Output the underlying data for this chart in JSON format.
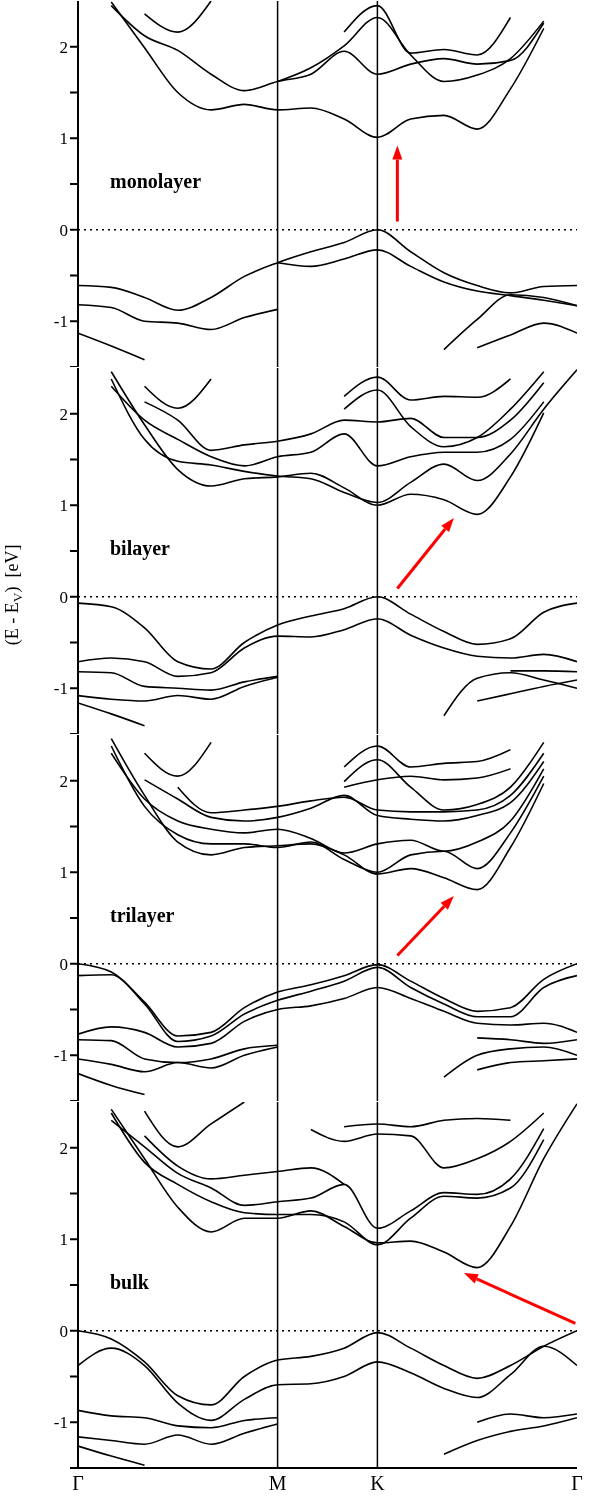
{
  "chart_data": [
    {
      "type": "line",
      "annotations": [
        "monolayer"
      ],
      "categories": [
        "Γ",
        null,
        null,
        null,
        null,
        null,
        "M",
        null,
        null,
        "K",
        null,
        null,
        null,
        null,
        null,
        "Γ"
      ],
      "ylim": [
        -1.5,
        2.5
      ],
      "yticks": [
        {
          "value": -1.5,
          "label": null
        },
        -1,
        {
          "value": -0.5,
          "label": null
        },
        0,
        {
          "value": 0.5,
          "label": null
        },
        1,
        {
          "value": 1.5,
          "label": null
        },
        2
      ],
      "tick_labels": "y",
      "ref_lines": [
        {
          "axis": "x",
          "value": "M",
          "color": "#000000",
          "line_style": "solid"
        },
        {
          "axis": "x",
          "value": "K",
          "color": "#000000",
          "line_style": "solid"
        },
        {
          "axis": "y",
          "value": 0,
          "color": "#000000",
          "line_style": "dotted"
        }
      ],
      "series": [
        {
          "color": "#000000",
          "values": [
            -0.61,
            -0.63,
            -0.74,
            -0.88,
            -0.74,
            -0.51,
            -0.36,
            -0.24,
            -0.14,
            0,
            -0.24,
            -0.47,
            -0.61,
            -0.69,
            -0.62,
            -0.61
          ]
        },
        {
          "color": "#000000",
          "values": [
            null,
            null,
            null,
            null,
            null,
            null,
            -0.36,
            -0.4,
            -0.32,
            -0.22,
            -0.4,
            -0.57,
            -0.67,
            -0.72,
            -0.77,
            -0.83
          ]
        },
        {
          "color": "#000000",
          "values": [
            -0.82,
            -0.85,
            -1.0,
            -1.02,
            -1.09,
            -0.96,
            -0.87,
            null,
            null,
            null,
            null,
            null,
            null,
            null,
            null,
            null
          ]
        },
        {
          "color": "#000000",
          "values": [
            -1.13,
            -1.27,
            -1.42,
            null,
            null,
            null,
            null,
            null,
            null,
            null,
            null,
            null,
            null,
            null,
            null,
            null
          ]
        },
        {
          "color": "#000000",
          "values": [
            null,
            null,
            null,
            null,
            null,
            null,
            null,
            null,
            null,
            null,
            null,
            -1.31,
            -0.98,
            -0.71,
            -0.74,
            -0.83
          ]
        },
        {
          "color": "#000000",
          "values": [
            null,
            null,
            null,
            null,
            null,
            null,
            null,
            null,
            null,
            null,
            null,
            null,
            -1.29,
            -1.15,
            -1.02,
            -1.13
          ]
        },
        {
          "color": "#000000",
          "values": [
            null,
            2.49,
            1.99,
            1.5,
            1.31,
            1.37,
            1.31,
            1.33,
            1.21,
            1.01,
            1.21,
            1.25,
            1.1,
            1.54,
            2.2,
            null
          ]
        },
        {
          "color": "#000000",
          "values": [
            null,
            2.45,
            2.12,
            1.96,
            1.7,
            1.52,
            1.62,
            1.7,
            1.95,
            1.7,
            1.81,
            1.87,
            1.81,
            1.85,
            2.26,
            null
          ]
        },
        {
          "color": "#000000",
          "values": [
            null,
            null,
            null,
            null,
            null,
            null,
            1.62,
            1.77,
            2.01,
            2.32,
            1.91,
            1.62,
            1.69,
            1.87,
            2.28,
            null
          ]
        },
        {
          "color": "#000000",
          "values": [
            null,
            null,
            2.36,
            2.16,
            2.5,
            null,
            null,
            null,
            null,
            null,
            null,
            null,
            null,
            null,
            null,
            null
          ]
        },
        {
          "color": "#000000",
          "values": [
            null,
            null,
            null,
            null,
            null,
            null,
            null,
            null,
            2.16,
            2.45,
            1.93,
            1.97,
            1.91,
            2.32,
            null,
            null
          ]
        }
      ]
    },
    {
      "type": "line",
      "annotations": [
        "bilayer"
      ],
      "ylabel": "(E - E$_{V}$)  [eV]",
      "categories": [
        "Γ",
        null,
        null,
        null,
        null,
        null,
        "M",
        null,
        null,
        "K",
        null,
        null,
        null,
        null,
        null,
        "Γ"
      ],
      "ylim": [
        -1.5,
        2.5
      ],
      "yticks": [
        {
          "value": -1.5,
          "label": null
        },
        -1,
        {
          "value": -0.5,
          "label": null
        },
        0,
        {
          "value": 0.5,
          "label": null
        },
        1,
        {
          "value": 1.5,
          "label": null
        },
        2
      ],
      "tick_labels": "y",
      "ref_lines": [
        {
          "axis": "x",
          "value": "M",
          "color": "#000000",
          "line_style": "solid"
        },
        {
          "axis": "x",
          "value": "K",
          "color": "#000000",
          "line_style": "solid"
        },
        {
          "axis": "y",
          "value": 0,
          "color": "#000000",
          "line_style": "dotted"
        }
      ],
      "series": [
        {
          "color": "#000000",
          "values": [
            -0.07,
            -0.11,
            -0.34,
            -0.71,
            -0.79,
            -0.5,
            -0.31,
            -0.21,
            -0.13,
            0,
            -0.19,
            -0.38,
            -0.52,
            -0.46,
            -0.17,
            -0.07
          ]
        },
        {
          "color": "#000000",
          "values": [
            -0.71,
            -0.67,
            -0.71,
            -0.87,
            -0.83,
            -0.56,
            -0.43,
            -0.44,
            -0.36,
            -0.24,
            -0.42,
            -0.56,
            -0.65,
            -0.67,
            -0.63,
            -0.71
          ]
        },
        {
          "color": "#000000",
          "values": [
            -0.82,
            -0.83,
            -0.98,
            -1.0,
            -1.02,
            -0.93,
            -0.87,
            null,
            null,
            null,
            null,
            null,
            null,
            -0.81,
            -0.81,
            -0.82
          ]
        },
        {
          "color": "#000000",
          "values": [
            -1.08,
            -1.12,
            -1.14,
            -1.08,
            -1.12,
            -0.98,
            -0.88,
            null,
            null,
            null,
            null,
            null,
            null,
            null,
            null,
            null
          ]
        },
        {
          "color": "#000000",
          "values": [
            null,
            null,
            null,
            null,
            null,
            null,
            null,
            null,
            null,
            null,
            null,
            -1.3,
            -0.89,
            -0.83,
            -0.91,
            -1.0
          ]
        },
        {
          "color": "#000000",
          "values": [
            null,
            null,
            null,
            null,
            null,
            null,
            null,
            null,
            null,
            null,
            null,
            null,
            -1.14,
            -1.06,
            -0.98,
            -0.91
          ]
        },
        {
          "color": "#000000",
          "values": [
            -1.16,
            -1.28,
            -1.41,
            null,
            null,
            null,
            null,
            null,
            null,
            null,
            null,
            null,
            null,
            null,
            null,
            null
          ]
        },
        {
          "color": "#000000",
          "values": [
            null,
            2.46,
            1.88,
            1.39,
            1.21,
            1.29,
            1.31,
            1.35,
            1.19,
            1.0,
            1.12,
            1.06,
            0.9,
            1.31,
            2.01,
            null
          ]
        },
        {
          "color": "#000000",
          "values": [
            null,
            2.38,
            1.72,
            1.48,
            1.44,
            1.37,
            1.32,
            1.29,
            1.14,
            1.03,
            1.25,
            1.45,
            1.27,
            1.56,
            2.05,
            2.48
          ]
        },
        {
          "color": "#000000",
          "values": [
            null,
            2.3,
            1.93,
            1.72,
            1.53,
            1.43,
            1.53,
            1.58,
            1.78,
            1.43,
            1.53,
            1.58,
            1.58,
            1.72,
            2.13,
            null
          ]
        },
        {
          "color": "#000000",
          "values": [
            null,
            null,
            2.13,
            1.93,
            1.6,
            1.66,
            1.7,
            1.78,
            1.93,
            1.91,
            1.95,
            1.74,
            1.74,
            1.93,
            2.34,
            null
          ]
        },
        {
          "color": "#000000",
          "values": [
            null,
            null,
            null,
            null,
            null,
            null,
            null,
            null,
            2.19,
            2.4,
            2.15,
            2.19,
            2.18,
            2.38,
            null,
            null
          ]
        },
        {
          "color": "#000000",
          "values": [
            null,
            null,
            null,
            null,
            null,
            null,
            null,
            null,
            2.05,
            2.26,
            1.86,
            1.64,
            1.74,
            2.05,
            2.46,
            null
          ]
        },
        {
          "color": "#000000",
          "values": [
            null,
            null,
            2.3,
            2.06,
            2.38,
            null,
            null,
            null,
            null,
            null,
            null,
            null,
            null,
            null,
            null,
            null
          ]
        }
      ]
    },
    {
      "type": "line",
      "annotations": [
        "trilayer"
      ],
      "categories": [
        "Γ",
        null,
        null,
        null,
        null,
        null,
        "M",
        null,
        null,
        "K",
        null,
        null,
        null,
        null,
        null,
        "Γ"
      ],
      "ylim": [
        -1.5,
        2.5
      ],
      "yticks": [
        {
          "value": -1.5,
          "label": null
        },
        -1,
        {
          "value": -0.5,
          "label": null
        },
        0,
        {
          "value": 0.5,
          "label": null
        },
        1,
        {
          "value": 1.5,
          "label": null
        },
        2
      ],
      "tick_labels": "y",
      "ref_lines": [
        {
          "axis": "x",
          "value": "M",
          "color": "#000000",
          "line_style": "solid"
        },
        {
          "axis": "x",
          "value": "K",
          "color": "#000000",
          "line_style": "solid"
        },
        {
          "axis": "y",
          "value": 0,
          "color": "#000000",
          "line_style": "dotted"
        }
      ],
      "series": [
        {
          "color": "#000000",
          "values": [
            0,
            -0.09,
            -0.42,
            -0.79,
            -0.75,
            -0.48,
            -0.31,
            -0.23,
            -0.13,
            -0.01,
            -0.19,
            -0.38,
            -0.52,
            -0.48,
            -0.17,
            0
          ]
        },
        {
          "color": "#000000",
          "values": [
            -0.13,
            -0.12,
            -0.44,
            -0.85,
            -0.79,
            -0.55,
            -0.4,
            -0.3,
            -0.19,
            -0.04,
            -0.26,
            -0.44,
            -0.58,
            -0.58,
            -0.26,
            -0.13
          ]
        },
        {
          "color": "#000000",
          "values": [
            -0.77,
            -0.69,
            -0.75,
            -0.91,
            -0.87,
            -0.63,
            -0.5,
            -0.46,
            -0.38,
            -0.26,
            -0.38,
            -0.52,
            -0.65,
            -0.67,
            -0.65,
            -0.75
          ]
        },
        {
          "color": "#000000",
          "values": [
            -0.83,
            -0.84,
            -1.04,
            -1.08,
            -1.04,
            -0.93,
            -0.89,
            null,
            null,
            null,
            null,
            null,
            -0.81,
            -0.83,
            -0.87,
            -0.83
          ]
        },
        {
          "color": "#000000",
          "values": [
            -1.04,
            -1.1,
            -1.18,
            -1.08,
            -1.14,
            -1.0,
            -0.91,
            null,
            null,
            null,
            null,
            null,
            null,
            null,
            null,
            null
          ]
        },
        {
          "color": "#000000",
          "values": [
            null,
            null,
            null,
            null,
            null,
            null,
            null,
            null,
            null,
            null,
            null,
            -1.24,
            -1.0,
            -0.93,
            -0.91,
            -1.0
          ]
        },
        {
          "color": "#000000",
          "values": [
            null,
            null,
            null,
            null,
            null,
            null,
            null,
            null,
            null,
            null,
            null,
            null,
            -1.16,
            -1.08,
            -1.06,
            -1.04
          ]
        },
        {
          "color": "#000000",
          "values": [
            -1.2,
            -1.33,
            -1.43,
            null,
            null,
            null,
            null,
            null,
            null,
            null,
            null,
            null,
            null,
            null,
            null,
            null
          ]
        },
        {
          "color": "#000000",
          "values": [
            null,
            2.46,
            1.84,
            1.33,
            1.19,
            1.27,
            1.29,
            1.31,
            1.19,
            0.98,
            1.04,
            0.94,
            0.81,
            1.27,
            1.97,
            null
          ]
        },
        {
          "color": "#000000",
          "values": [
            null,
            2.38,
            1.72,
            1.41,
            1.31,
            1.31,
            1.27,
            1.33,
            1.14,
            1.0,
            1.19,
            1.23,
            1.04,
            1.43,
            2.05,
            null
          ]
        },
        {
          "color": "#000000",
          "values": [
            null,
            2.3,
            1.8,
            1.56,
            1.47,
            1.43,
            1.47,
            1.37,
            1.21,
            1.31,
            1.35,
            1.23,
            1.33,
            1.56,
            2.13,
            null
          ]
        },
        {
          "color": "#000000",
          "values": [
            null,
            null,
            2.01,
            1.8,
            1.6,
            1.56,
            1.6,
            1.7,
            1.84,
            1.62,
            1.58,
            1.56,
            1.62,
            1.76,
            2.21,
            null
          ]
        },
        {
          "color": "#000000",
          "values": [
            null,
            null,
            null,
            1.93,
            1.65,
            1.68,
            1.72,
            1.78,
            1.82,
            1.68,
            1.66,
            1.66,
            1.68,
            1.84,
            2.3,
            null
          ]
        },
        {
          "color": "#000000",
          "values": [
            null,
            null,
            null,
            null,
            null,
            null,
            null,
            null,
            2.15,
            2.38,
            2.15,
            2.19,
            2.21,
            2.34,
            null,
            null
          ]
        },
        {
          "color": "#000000",
          "values": [
            null,
            null,
            null,
            null,
            null,
            null,
            null,
            null,
            1.99,
            2.23,
            1.93,
            1.68,
            1.74,
            1.93,
            2.42,
            null
          ]
        },
        {
          "color": "#000000",
          "values": [
            null,
            null,
            null,
            null,
            null,
            null,
            null,
            null,
            1.93,
            2.01,
            2.05,
            2.01,
            2.03,
            2.13,
            null,
            null
          ]
        },
        {
          "color": "#000000",
          "values": [
            null,
            null,
            2.3,
            2.05,
            2.42,
            null,
            null,
            null,
            null,
            null,
            null,
            null,
            null,
            null,
            null,
            null
          ]
        }
      ]
    },
    {
      "type": "line",
      "annotations": [
        "bulk"
      ],
      "categories": [
        "Γ",
        null,
        null,
        null,
        null,
        null,
        "M",
        null,
        null,
        "K",
        null,
        null,
        null,
        null,
        null,
        "Γ"
      ],
      "ylim": [
        -1.5,
        2.5
      ],
      "yticks": [
        {
          "value": -1.5,
          "label": null
        },
        -1,
        {
          "value": -0.5,
          "label": null
        },
        0,
        {
          "value": 0.5,
          "label": null
        },
        1,
        {
          "value": 1.5,
          "label": null
        },
        2
      ],
      "ref_lines": [
        {
          "axis": "x",
          "value": "M",
          "color": "#000000",
          "line_style": "solid"
        },
        {
          "axis": "x",
          "value": "K",
          "color": "#000000",
          "line_style": "solid"
        },
        {
          "axis": "y",
          "value": 0,
          "color": "#000000",
          "line_style": "dotted"
        }
      ],
      "series": [
        {
          "color": "#000000",
          "values": [
            0,
            -0.09,
            -0.34,
            -0.71,
            -0.81,
            -0.5,
            -0.32,
            -0.28,
            -0.19,
            -0.02,
            -0.19,
            -0.38,
            -0.52,
            -0.38,
            -0.17,
            0
          ]
        },
        {
          "color": "#000000",
          "values": [
            -0.38,
            -0.19,
            -0.38,
            -0.79,
            -0.98,
            -0.75,
            -0.59,
            -0.58,
            -0.5,
            -0.34,
            -0.46,
            -0.63,
            -0.73,
            -0.48,
            -0.17,
            -0.38
          ]
        },
        {
          "color": "#000000",
          "values": [
            -0.87,
            -0.93,
            -0.95,
            -1.04,
            -1.06,
            -0.98,
            -0.95,
            null,
            null,
            null,
            null,
            null,
            -1.0,
            -0.91,
            -0.95,
            -0.91
          ]
        },
        {
          "color": "#000000",
          "values": [
            -1.16,
            -1.2,
            -1.24,
            -1.14,
            -1.24,
            -1.12,
            -1.02,
            null,
            null,
            null,
            null,
            null,
            null,
            null,
            null,
            null
          ]
        },
        {
          "color": "#000000",
          "values": [
            null,
            null,
            null,
            null,
            null,
            null,
            null,
            null,
            null,
            null,
            null,
            -1.35,
            -1.2,
            -1.1,
            -1.04,
            -0.95
          ]
        },
        {
          "color": "#000000",
          "values": [
            -1.26,
            -1.37,
            -1.47,
            null,
            null,
            null,
            null,
            null,
            null,
            null,
            null,
            null,
            null,
            null,
            null,
            null
          ]
        },
        {
          "color": "#000000",
          "values": [
            null,
            2.42,
            1.88,
            1.35,
            1.08,
            1.23,
            1.23,
            1.31,
            1.14,
            0.96,
            0.98,
            0.86,
            0.69,
            1.14,
            1.88,
            2.48
          ]
        },
        {
          "color": "#000000",
          "values": [
            null,
            2.38,
            1.84,
            1.6,
            1.41,
            1.29,
            1.27,
            1.27,
            1.19,
            0.94,
            1.23,
            1.47,
            1.45,
            1.56,
            2.09,
            null
          ]
        },
        {
          "color": "#000000",
          "values": [
            null,
            2.3,
            2.01,
            1.72,
            1.56,
            1.37,
            1.41,
            1.45,
            1.6,
            1.12,
            1.31,
            1.51,
            1.49,
            1.66,
            2.21,
            null
          ]
        },
        {
          "color": "#000000",
          "values": [
            null,
            null,
            2.13,
            1.8,
            1.66,
            1.7,
            1.74,
            1.78,
            1.6,
            null,
            null,
            null,
            null,
            null,
            null,
            null
          ]
        },
        {
          "color": "#000000",
          "values": [
            null,
            null,
            null,
            null,
            null,
            null,
            null,
            2.2,
            2.07,
            2.15,
            2.13,
            1.78,
            1.88,
            2.07,
            2.38,
            null
          ]
        },
        {
          "color": "#000000",
          "values": [
            null,
            null,
            null,
            null,
            null,
            null,
            null,
            null,
            2.23,
            2.26,
            2.23,
            2.3,
            2.32,
            2.3,
            null,
            null
          ]
        },
        {
          "color": "#000000",
          "values": [
            null,
            null,
            2.4,
            2.01,
            2.26,
            2.5,
            null,
            null,
            null,
            null,
            null,
            null,
            null,
            null,
            null,
            null
          ]
        }
      ]
    }
  ]
}
